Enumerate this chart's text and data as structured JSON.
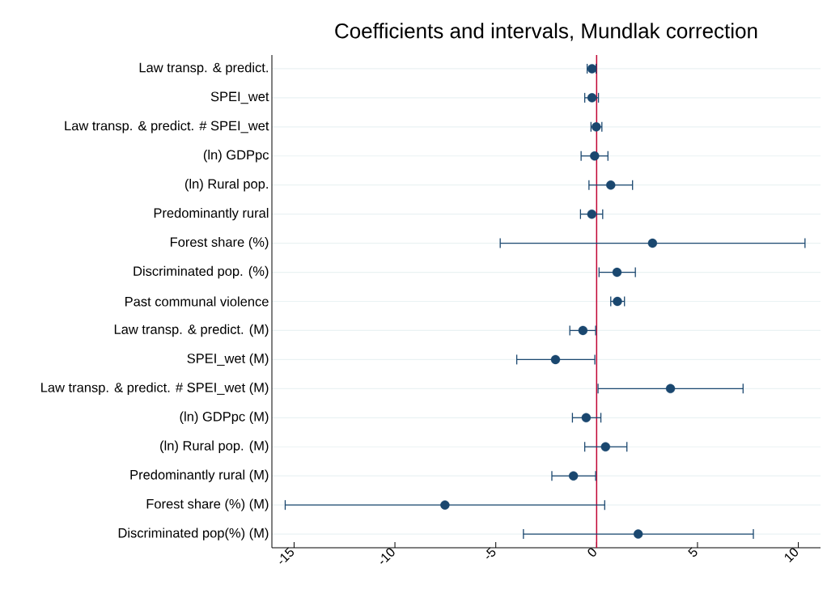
{
  "chart_data": {
    "type": "scatter",
    "orientation": "horizontal",
    "title": "Coefficients and intervals, Mundlak correction",
    "categories": [
      "Law transp. & predict.",
      "SPEI_wet",
      "Law transp. & predict. # SPEI_wet",
      "(ln) GDPpc",
      "(ln) Rural pop.",
      "Predominantly rural",
      "Forest share (%)",
      "Discriminated pop. (%)",
      "Past communal violence",
      "Law transp. & predict. (M)",
      "SPEI_wet (M)",
      "Law transp. & predict. # SPEI_wet (M)",
      "(ln) GDPpc (M)",
      "(ln) Rural pop. (M)",
      "Predominantly rural (M)",
      "Forest share (%) (M)",
      "Discriminated pop(%) (M)"
    ],
    "values": [
      -0.23,
      -0.23,
      -0.02,
      -0.1,
      0.7,
      -0.24,
      2.77,
      1.01,
      1.03,
      -0.68,
      -2.04,
      3.66,
      -0.52,
      0.44,
      -1.15,
      -7.52,
      2.06
    ],
    "errors": [
      [
        -0.47,
        -0.03
      ],
      [
        -0.59,
        0.09
      ],
      [
        -0.28,
        0.26
      ],
      [
        -0.77,
        0.56
      ],
      [
        -0.38,
        1.78
      ],
      [
        -0.8,
        0.3
      ],
      [
        -4.78,
        10.33
      ],
      [
        0.12,
        1.92
      ],
      [
        0.7,
        1.38
      ],
      [
        -1.33,
        -0.05
      ],
      [
        -3.96,
        -0.09
      ],
      [
        0.07,
        7.26
      ],
      [
        -1.2,
        0.21
      ],
      [
        -0.59,
        1.5
      ],
      [
        -2.22,
        -0.05
      ],
      [
        -15.44,
        0.4
      ],
      [
        -3.63,
        7.77
      ]
    ],
    "color": "#1a476f",
    "marker": "circle",
    "grid": "y",
    "xlim": [
      -16.1,
      11.1
    ],
    "xticks": [
      -15,
      -10,
      -5,
      0,
      5,
      10
    ],
    "ref_lines": [
      {
        "axis": "x",
        "value": 0,
        "color": "#c10534"
      }
    ]
  }
}
